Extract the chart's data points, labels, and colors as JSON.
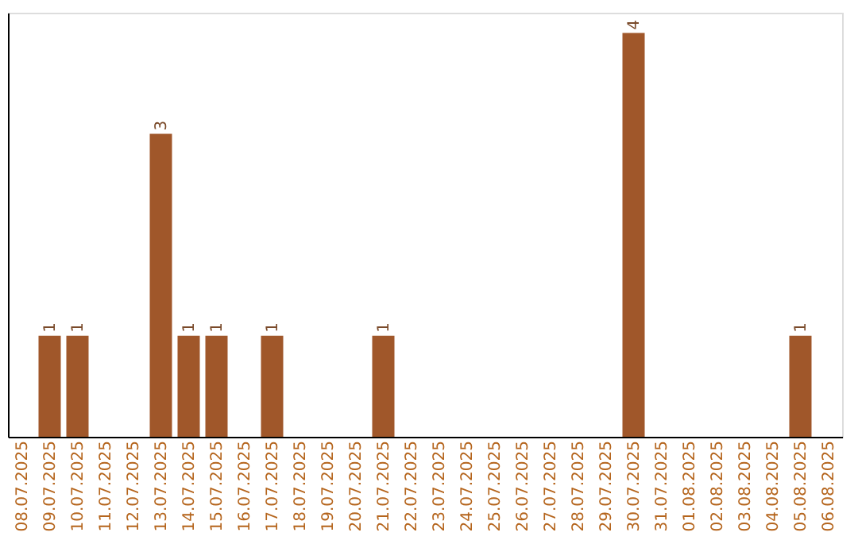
{
  "chart_data": {
    "type": "bar",
    "categories": [
      "08.07.2025",
      "09.07.2025",
      "10.07.2025",
      "11.07.2025",
      "12.07.2025",
      "13.07.2025",
      "14.07.2025",
      "15.07.2025",
      "16.07.2025",
      "17.07.2025",
      "18.07.2025",
      "19.07.2025",
      "20.07.2025",
      "21.07.2025",
      "22.07.2025",
      "23.07.2025",
      "24.07.2025",
      "25.07.2025",
      "26.07.2025",
      "27.07.2025",
      "28.07.2025",
      "29.07.2025",
      "30.07.2025",
      "31.07.2025",
      "01.08.2025",
      "02.08.2025",
      "03.08.2025",
      "04.08.2025",
      "05.08.2025",
      "06.08.2025"
    ],
    "values": [
      0,
      1,
      1,
      0,
      0,
      3,
      1,
      1,
      0,
      1,
      0,
      0,
      0,
      1,
      0,
      0,
      0,
      0,
      0,
      0,
      0,
      0,
      4,
      0,
      0,
      0,
      0,
      0,
      1,
      0
    ],
    "value_labels": [
      null,
      "1",
      "1",
      null,
      null,
      "3",
      "1",
      "1",
      null,
      "1",
      null,
      null,
      null,
      "1",
      null,
      null,
      null,
      null,
      null,
      null,
      null,
      null,
      "4",
      null,
      null,
      null,
      null,
      null,
      "1",
      null
    ],
    "color": "#a0572a",
    "ylim": [
      0,
      4.2
    ],
    "tick_labels": "x",
    "grid": false
  }
}
